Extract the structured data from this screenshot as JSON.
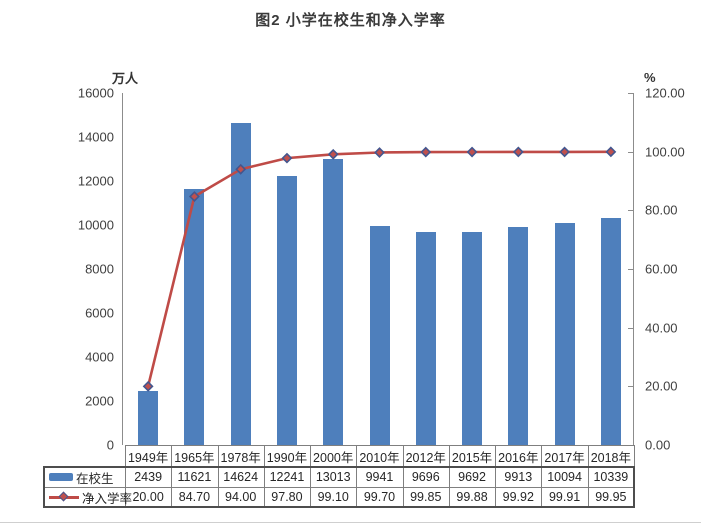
{
  "figure": {
    "title": "图2  小学在校生和净入学率"
  },
  "chart_data": {
    "type": "bar",
    "subtype": "combo-bar-line-with-data-table",
    "title": "图2  小学在校生和净入学率",
    "categories": [
      "1949年",
      "1965年",
      "1978年",
      "1990年",
      "2000年",
      "2010年",
      "2012年",
      "2015年",
      "2016年",
      "2017年",
      "2018年"
    ],
    "series": [
      {
        "name": "在校生",
        "type": "bar",
        "axis": "left",
        "color": "#4e7fbc",
        "values": [
          2439,
          11621,
          14624,
          12241,
          13013,
          9941,
          9696,
          9692,
          9913,
          10094,
          10339
        ],
        "values_display": [
          "2439",
          "11621",
          "14624",
          "12241",
          "13013",
          "9941",
          "9696",
          "9692",
          "9913",
          "10094",
          "10339"
        ]
      },
      {
        "name": "净入学率",
        "type": "line",
        "axis": "right",
        "color": "#bf4b47",
        "marker": "diamond",
        "marker_fill": "#c0504d",
        "marker_stroke": "#44568e",
        "values": [
          20.0,
          84.7,
          94.0,
          97.8,
          99.1,
          99.7,
          99.85,
          99.88,
          99.92,
          99.91,
          99.95
        ],
        "values_display": [
          "20.00",
          "84.70",
          "94.00",
          "97.80",
          "99.10",
          "99.70",
          "99.85",
          "99.88",
          "99.92",
          "99.91",
          "99.95"
        ]
      }
    ],
    "left_axis": {
      "unit": "万人",
      "min": 0,
      "max": 16000,
      "step": 2000,
      "tick_labels": [
        "16000",
        "14000",
        "12000",
        "10000",
        "8000",
        "6000",
        "4000",
        "2000",
        "0"
      ]
    },
    "right_axis": {
      "unit": "%",
      "min": 0,
      "max": 120,
      "step": 20,
      "tick_labels": [
        "120.00",
        "100.00",
        "80.00",
        "60.00",
        "40.00",
        "20.00",
        "0.00"
      ]
    },
    "grid": false,
    "legend_position": "data-table-left",
    "colors": {
      "bar": "#4e7fbc",
      "line": "#bf4b47",
      "marker_fill": "#c0504d",
      "marker_stroke": "#44568e",
      "axis": "#8c8c8c",
      "table_grid": "#7f7f7f",
      "table_outline": "#4d4d4d"
    }
  }
}
